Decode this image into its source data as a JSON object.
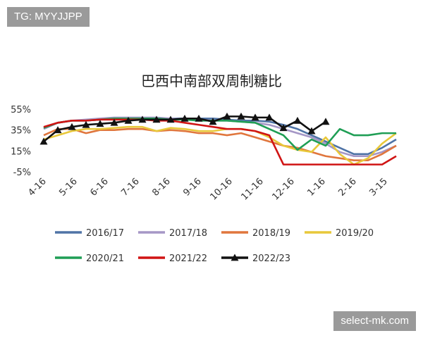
{
  "watermarks": {
    "top_left": "TG: MYYJJPP",
    "bottom_right": "select-mk.com"
  },
  "chart_data": {
    "type": "line",
    "title": "巴西中南部双周制糖比",
    "xlabel": "",
    "ylabel": "",
    "ylim": [
      -5,
      55
    ],
    "yticks": [
      "55%",
      "35%",
      "15%",
      "-5%"
    ],
    "ytick_values": [
      55,
      35,
      15,
      -5
    ],
    "xtick_labels": [
      "4-16",
      "5-16",
      "6-16",
      "7-16",
      "8-16",
      "9-16",
      "10-16",
      "11-16",
      "12-16",
      "1-16",
      "2-16",
      "3-15"
    ],
    "legend_position": "bottom",
    "grid": false,
    "series": [
      {
        "name": "2016/17",
        "color": "#4f73a6",
        "values": [
          37,
          42,
          44,
          44,
          45,
          46,
          46,
          46,
          46,
          46,
          46,
          46,
          46,
          45,
          44,
          44,
          43,
          40,
          36,
          30,
          24,
          18,
          12,
          12,
          18,
          26
        ]
      },
      {
        "name": "2017/18",
        "color": "#a597c6",
        "values": [
          36,
          42,
          44,
          45,
          46,
          47,
          47,
          47,
          47,
          46,
          45,
          45,
          44,
          44,
          43,
          42,
          40,
          36,
          32,
          28,
          22,
          14,
          10,
          10,
          14,
          20
        ]
      },
      {
        "name": "2018/19",
        "color": "#e0763d",
        "values": [
          30,
          36,
          36,
          32,
          35,
          35,
          36,
          36,
          34,
          35,
          34,
          32,
          32,
          30,
          32,
          28,
          24,
          20,
          18,
          14,
          10,
          8,
          6,
          6,
          12,
          20
        ]
      },
      {
        "name": "2019/20",
        "color": "#e8c83a",
        "values": [
          26,
          30,
          34,
          36,
          36,
          37,
          38,
          38,
          34,
          37,
          36,
          34,
          34,
          36,
          36,
          34,
          28,
          20,
          16,
          14,
          28,
          12,
          2,
          8,
          22,
          32
        ]
      },
      {
        "name": "2020/21",
        "color": "#1f9e55",
        "values": [
          37,
          42,
          44,
          44,
          45,
          46,
          46,
          46,
          46,
          45,
          45,
          44,
          44,
          44,
          43,
          42,
          36,
          30,
          16,
          26,
          20,
          36,
          30,
          30,
          32,
          32
        ]
      },
      {
        "name": "2021/22",
        "color": "#d01414",
        "values": [
          38,
          42,
          44,
          44,
          45,
          45,
          45,
          45,
          44,
          44,
          42,
          40,
          38,
          36,
          36,
          34,
          30,
          2,
          2,
          2,
          2,
          2,
          2,
          2,
          2,
          10
        ]
      },
      {
        "name": "2022/23",
        "color": "#111111",
        "marker": "triangle",
        "values": [
          24,
          35,
          38,
          40,
          41,
          42,
          44,
          45,
          45,
          45,
          46,
          46,
          43,
          48,
          48,
          47,
          47,
          37,
          44,
          34,
          43
        ]
      }
    ]
  }
}
